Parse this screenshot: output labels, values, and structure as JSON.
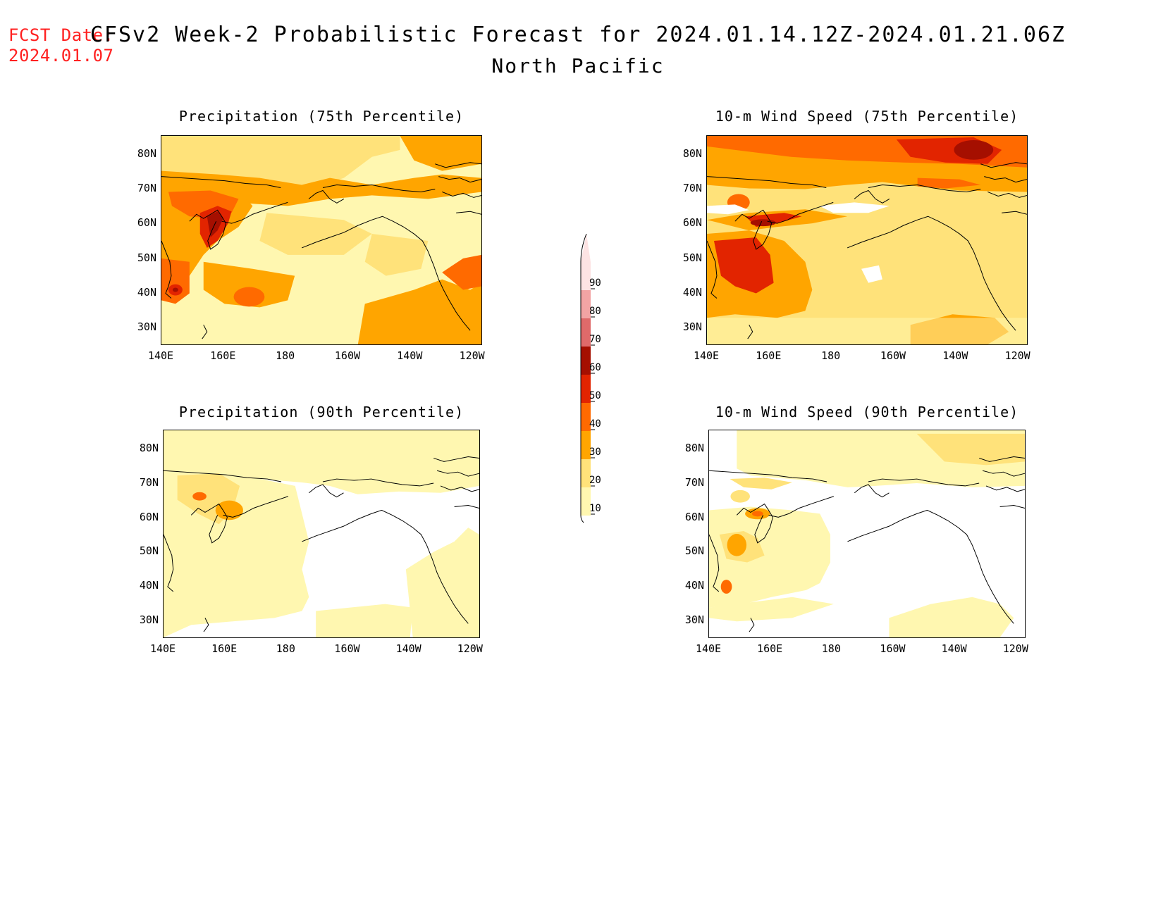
{
  "header": {
    "fcst_label": "FCST Date:",
    "fcst_date": "2024.01.07",
    "title": "CFSv2 Week-2 Probabilistic Forecast for 2024.01.14.12Z-2024.01.21.06Z",
    "subtitle": "North Pacific"
  },
  "axes": {
    "lat_ticks": [
      "80N",
      "70N",
      "60N",
      "50N",
      "40N",
      "30N"
    ],
    "lon_ticks": [
      "140E",
      "160E",
      "180",
      "160W",
      "140W",
      "120W"
    ]
  },
  "panels": [
    {
      "title": "Precipitation (75th Percentile)",
      "intensity": "high"
    },
    {
      "title": "10-m Wind Speed (75th Percentile)",
      "intensity": "high"
    },
    {
      "title": "Precipitation (90th Percentile)",
      "intensity": "low"
    },
    {
      "title": "10-m Wind Speed (90th Percentile)",
      "intensity": "low"
    }
  ],
  "colorbar": {
    "levels": [
      "90",
      "80",
      "70",
      "60",
      "50",
      "40",
      "30",
      "20",
      "10"
    ],
    "colors": [
      "#fde3e3",
      "#f2a4a4",
      "#df6a6a",
      "#a50f00",
      "#e22400",
      "#ff6a00",
      "#ffa500",
      "#ffe27a",
      "#fff7b0"
    ]
  }
}
